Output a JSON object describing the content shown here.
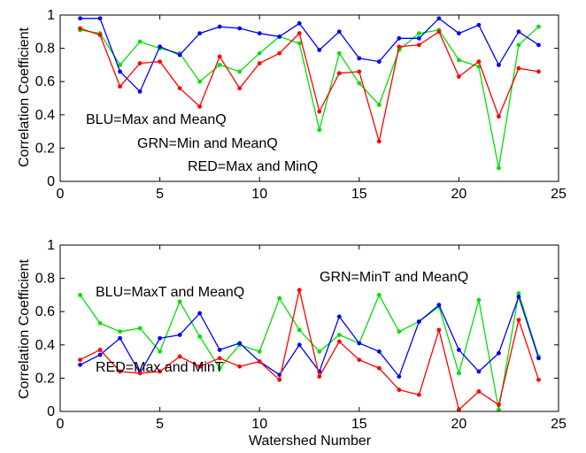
{
  "chart_data": [
    {
      "type": "line",
      "xlabel": "",
      "ylabel": "Correlation Coefficient",
      "xlim": [
        0,
        25
      ],
      "ylim": [
        0,
        1
      ],
      "xticks": [
        0,
        5,
        10,
        15,
        20,
        25
      ],
      "yticks": [
        0,
        0.2,
        0.4,
        0.6,
        0.8,
        1
      ],
      "xtick_labels": [
        "0",
        "5",
        "10",
        "15",
        "20",
        "25"
      ],
      "ytick_labels": [
        "0",
        "0.2",
        "0.4",
        "0.6",
        "0.8",
        "1"
      ],
      "grid": false,
      "x": [
        1,
        2,
        3,
        4,
        5,
        6,
        7,
        8,
        9,
        10,
        11,
        12,
        13,
        14,
        15,
        16,
        17,
        18,
        19,
        20,
        21,
        22,
        23,
        24
      ],
      "series": [
        {
          "color": "#0000ff",
          "values": [
            0.98,
            0.98,
            0.66,
            0.54,
            0.81,
            0.76,
            0.89,
            0.93,
            0.92,
            0.89,
            0.87,
            0.95,
            0.79,
            0.9,
            0.74,
            0.72,
            0.86,
            0.86,
            0.98,
            0.89,
            0.94,
            0.7,
            0.9,
            0.82
          ]
        },
        {
          "color": "#00e000",
          "values": [
            0.91,
            0.89,
            0.7,
            0.84,
            0.8,
            0.77,
            0.6,
            0.7,
            0.66,
            0.77,
            0.87,
            0.83,
            0.31,
            0.77,
            0.59,
            0.46,
            0.79,
            0.89,
            0.91,
            0.73,
            0.69,
            0.08,
            0.82,
            0.93
          ]
        },
        {
          "color": "#ff0000",
          "values": [
            0.92,
            0.88,
            0.57,
            0.71,
            0.72,
            0.56,
            0.45,
            0.75,
            0.56,
            0.71,
            0.77,
            0.89,
            0.42,
            0.65,
            0.66,
            0.24,
            0.81,
            0.82,
            0.9,
            0.63,
            0.72,
            0.39,
            0.68,
            0.66
          ]
        }
      ],
      "annotations": [
        "BLU=Max and MeanQ",
        "GRN=Min and MeanQ",
        "RED=Max and MinQ"
      ]
    },
    {
      "type": "line",
      "xlabel": "Watershed Number",
      "ylabel": "Correlation Coefficient",
      "xlim": [
        0,
        25
      ],
      "ylim": [
        0,
        1
      ],
      "xticks": [
        0,
        5,
        10,
        15,
        20,
        25
      ],
      "yticks": [
        0,
        0.2,
        0.4,
        0.6,
        0.8,
        1
      ],
      "xtick_labels": [
        "0",
        "5",
        "10",
        "15",
        "20",
        "25"
      ],
      "ytick_labels": [
        "0",
        "0.2",
        "0.4",
        "0.6",
        "0.8",
        "1"
      ],
      "grid": false,
      "x": [
        1,
        2,
        3,
        4,
        5,
        6,
        7,
        8,
        9,
        10,
        11,
        12,
        13,
        14,
        15,
        16,
        17,
        18,
        19,
        20,
        21,
        22,
        23,
        24
      ],
      "series": [
        {
          "color": "#0000ff",
          "values": [
            0.28,
            0.34,
            0.44,
            0.23,
            0.44,
            0.46,
            0.59,
            0.37,
            0.41,
            0.3,
            0.22,
            0.4,
            0.24,
            0.57,
            0.41,
            0.36,
            0.21,
            0.54,
            0.64,
            0.37,
            0.24,
            0.35,
            0.69,
            0.32
          ]
        },
        {
          "color": "#00e000",
          "values": [
            0.7,
            0.53,
            0.48,
            0.5,
            0.36,
            0.66,
            0.45,
            0.26,
            0.4,
            0.36,
            0.68,
            0.49,
            0.36,
            0.46,
            0.41,
            0.7,
            0.48,
            0.54,
            0.63,
            0.23,
            0.67,
            0.01,
            0.71,
            0.33
          ]
        },
        {
          "color": "#ff0000",
          "values": [
            0.31,
            0.37,
            0.24,
            0.23,
            0.24,
            0.33,
            0.27,
            0.32,
            0.27,
            0.3,
            0.19,
            0.73,
            0.21,
            0.42,
            0.31,
            0.26,
            0.13,
            0.1,
            0.49,
            0.01,
            0.12,
            0.04,
            0.55,
            0.19
          ]
        }
      ],
      "annotations": [
        "GRN=MinT and MeanQ",
        "BLU=MaxT and MeanQ",
        "RED=Max and MinT"
      ]
    }
  ]
}
